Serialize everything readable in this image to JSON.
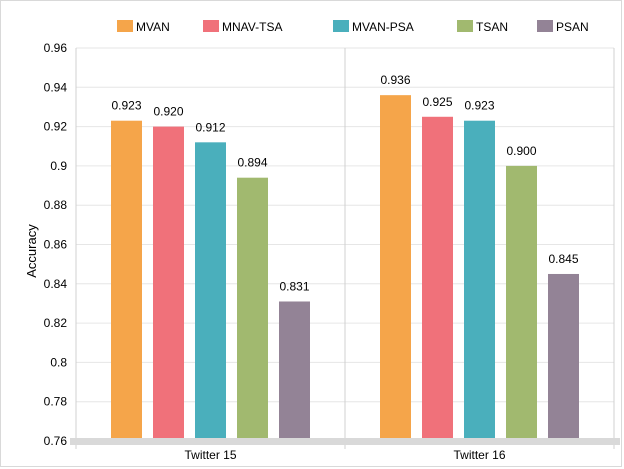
{
  "chart_data": {
    "type": "bar",
    "title": "",
    "xlabel": "",
    "ylabel": "Accuracy",
    "categories": [
      "Twitter 15",
      "Twitter 16"
    ],
    "ylim": [
      0.76,
      0.96
    ],
    "yticks": [
      "0.76",
      "0.78",
      "0.8",
      "0.82",
      "0.84",
      "0.86",
      "0.88",
      "0.9",
      "0.92",
      "0.94",
      "0.96"
    ],
    "grid": true,
    "legend_position": "top",
    "series": [
      {
        "name": "MVAN",
        "color": "#F5A54A",
        "values": [
          0.923,
          0.936
        ],
        "labels": [
          "0.923",
          "0.936"
        ]
      },
      {
        "name": "MNAV-TSA",
        "color": "#F0717A",
        "values": [
          0.92,
          0.925
        ],
        "labels": [
          "0.920",
          "0.925"
        ]
      },
      {
        "name": "MVAN-PSA",
        "color": "#4AAFBC",
        "values": [
          0.912,
          0.923
        ],
        "labels": [
          "0.912",
          "0.923"
        ]
      },
      {
        "name": "TSAN",
        "color": "#A1B96F",
        "values": [
          0.894,
          0.9
        ],
        "labels": [
          "0.894",
          "0.900"
        ]
      },
      {
        "name": "PSAN",
        "color": "#938396",
        "values": [
          0.831,
          0.845
        ],
        "labels": [
          "0.831",
          "0.845"
        ]
      }
    ]
  }
}
